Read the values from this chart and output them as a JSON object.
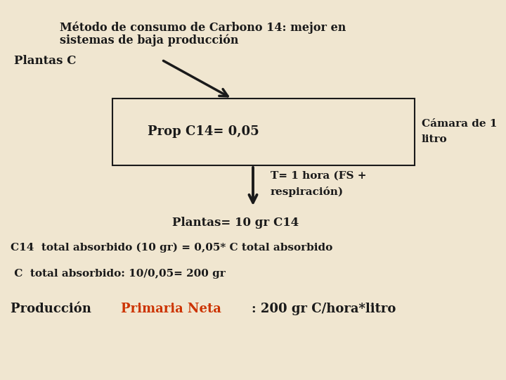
{
  "bg_color": "#f0e6d0",
  "title_line1": "Método de consumo de Carbono 14: mejor en",
  "title_line2": "sistemas de baja producción",
  "plantas_c_label": "Plantas C",
  "box_text": "Prop C14= 0,05",
  "camara_label_line1": "Cámara de 1",
  "camara_label_line2": "litro",
  "t_label_line1": "T= 1 hora (FS +",
  "t_label_line2": "respiración)",
  "plantas_result": "Plantas= 10 gr C14",
  "c14_line": "C14  total absorbido (10 gr) = 0,05* C total absorbido",
  "c_total_line": " C  total absorbido: 10/0,05= 200 gr",
  "produccion_prefix": "Producción ",
  "produccion_highlight": "Primaria Neta",
  "produccion_suffix": ": 200 gr C/hora*litro",
  "text_color": "#1a1a1a",
  "highlight_color": "#cc3300",
  "box_edge_color": "#1a1a1a",
  "arrow_color": "#1a1a1a",
  "font_size_title": 11.5,
  "font_size_body": 11,
  "font_size_box": 12,
  "font_size_bottom": 12
}
